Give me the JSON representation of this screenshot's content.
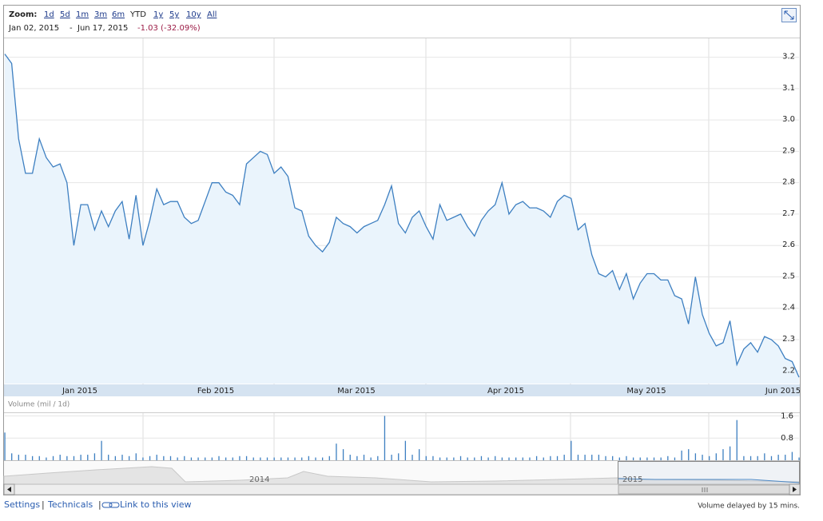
{
  "toolbar": {
    "zoom_label": "Zoom:",
    "zoom_options": [
      "1d",
      "5d",
      "1m",
      "3m",
      "6m",
      "YTD",
      "1y",
      "5y",
      "10y",
      "All"
    ]
  },
  "range": {
    "start": "Jan 02, 2015",
    "separator": "-",
    "end": "Jun 17, 2015",
    "change": "-1.03 (-32.09%)"
  },
  "chart_data": [
    {
      "type": "line",
      "color": "#3d7fc1",
      "fill": "#eaf4fc",
      "xticks": [
        "Jan 2015",
        "Feb 2015",
        "Mar 2015",
        "Apr 2015",
        "May 2015",
        "Jun 2015"
      ],
      "values": [
        3.21,
        3.18,
        2.94,
        2.83,
        2.83,
        2.94,
        2.88,
        2.85,
        2.86,
        2.8,
        2.6,
        2.73,
        2.73,
        2.65,
        2.71,
        2.66,
        2.71,
        2.74,
        2.62,
        2.76,
        2.6,
        2.68,
        2.78,
        2.73,
        2.74,
        2.74,
        2.69,
        2.67,
        2.68,
        2.74,
        2.8,
        2.8,
        2.77,
        2.76,
        2.73,
        2.86,
        2.88,
        2.9,
        2.89,
        2.83,
        2.85,
        2.82,
        2.72,
        2.71,
        2.63,
        2.6,
        2.58,
        2.61,
        2.69,
        2.67,
        2.66,
        2.64,
        2.66,
        2.67,
        2.68,
        2.73,
        2.79,
        2.67,
        2.64,
        2.69,
        2.71,
        2.66,
        2.62,
        2.73,
        2.68,
        2.69,
        2.7,
        2.66,
        2.63,
        2.68,
        2.71,
        2.73,
        2.8,
        2.7,
        2.73,
        2.74,
        2.72,
        2.72,
        2.71,
        2.69,
        2.74,
        2.76,
        2.75,
        2.65,
        2.67,
        2.57,
        2.51,
        2.5,
        2.52,
        2.46,
        2.51,
        2.43,
        2.48,
        2.51,
        2.51,
        2.49,
        2.49,
        2.44,
        2.43,
        2.35,
        2.5,
        2.38,
        2.32,
        2.28,
        2.29,
        2.36,
        2.22,
        2.27,
        2.29,
        2.26,
        2.31,
        2.3,
        2.28,
        2.24,
        2.23,
        2.18
      ],
      "ylim": [
        2.16,
        3.26
      ],
      "yticks": [
        2.2,
        2.3,
        2.4,
        2.5,
        2.6,
        2.7,
        2.8,
        2.9,
        {
          "value": 3,
          "label": "3.0"
        },
        3.1,
        3.2
      ],
      "grid": true
    },
    {
      "type": "bar",
      "title": "Volume (mil / 1d)",
      "color": "#3d7fc1",
      "values": [
        1.0,
        0.25,
        0.2,
        0.2,
        0.15,
        0.15,
        0.1,
        0.15,
        0.2,
        0.15,
        0.15,
        0.2,
        0.2,
        0.25,
        0.7,
        0.2,
        0.15,
        0.2,
        0.15,
        0.25,
        0.1,
        0.15,
        0.2,
        0.15,
        0.15,
        0.1,
        0.15,
        0.1,
        0.1,
        0.1,
        0.1,
        0.15,
        0.1,
        0.1,
        0.15,
        0.15,
        0.1,
        0.1,
        0.1,
        0.1,
        0.1,
        0.1,
        0.1,
        0.1,
        0.15,
        0.1,
        0.1,
        0.15,
        0.6,
        0.4,
        0.2,
        0.15,
        0.2,
        0.1,
        0.15,
        1.6,
        0.2,
        0.25,
        0.7,
        0.2,
        0.4,
        0.15,
        0.15,
        0.1,
        0.1,
        0.1,
        0.15,
        0.1,
        0.1,
        0.15,
        0.1,
        0.15,
        0.1,
        0.1,
        0.1,
        0.1,
        0.1,
        0.15,
        0.1,
        0.15,
        0.15,
        0.2,
        0.7,
        0.2,
        0.2,
        0.2,
        0.2,
        0.15,
        0.15,
        0.1,
        0.15,
        0.1,
        0.1,
        0.1,
        0.1,
        0.1,
        0.15,
        0.1,
        0.35,
        0.4,
        0.25,
        0.2,
        0.15,
        0.25,
        0.4,
        0.5,
        1.45,
        0.15,
        0.15,
        0.15,
        0.25,
        0.15,
        0.2,
        0.2,
        0.3,
        0.1
      ],
      "ylim": [
        0,
        1.7
      ],
      "yticks": [
        0.8,
        1.6
      ],
      "grid": true
    }
  ],
  "navigator": {
    "labels": [
      "2014",
      "2015"
    ]
  },
  "footer": {
    "settings": "Settings",
    "technicals": "Technicals",
    "link": "Link to this view",
    "note": "Volume delayed by 15 mins."
  }
}
